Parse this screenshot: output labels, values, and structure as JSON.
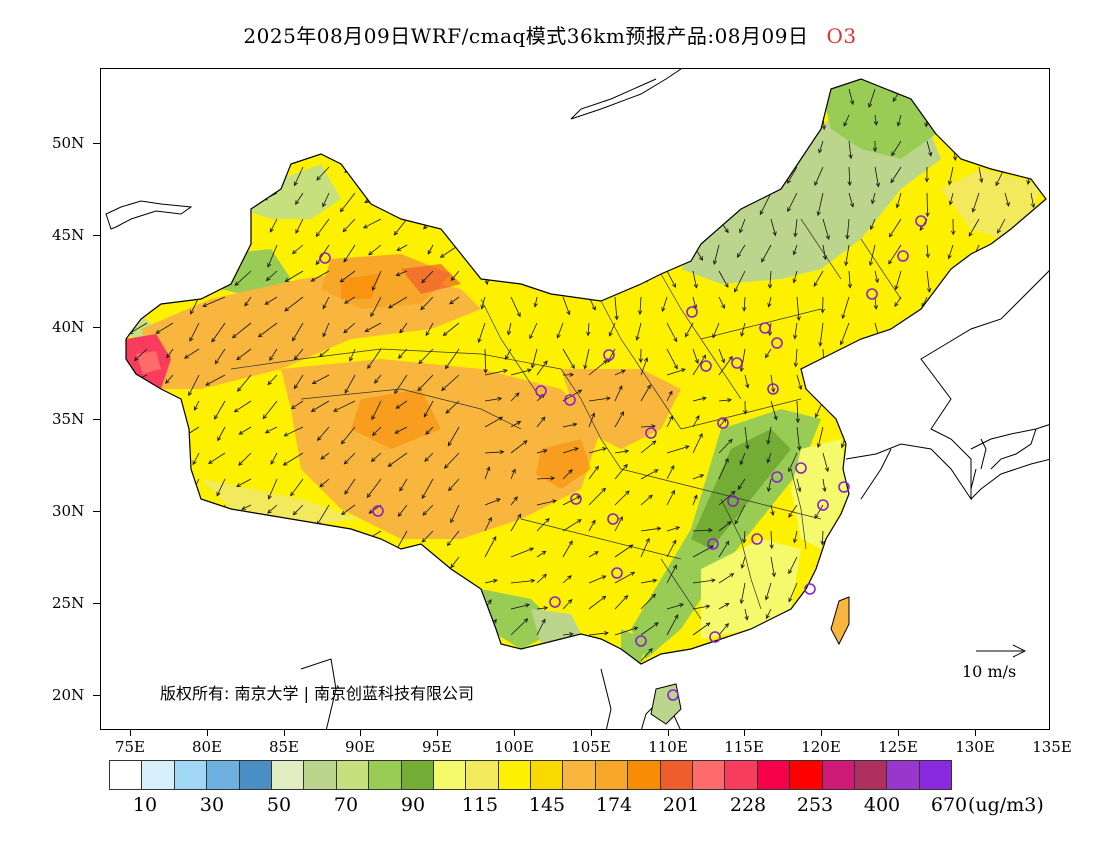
{
  "title": {
    "main": "2025年08月09日WRF/cmaq模式36km预报产品:08月09日",
    "species": "O3"
  },
  "colors": {
    "legend": [
      "#ffffff",
      "#d7effb",
      "#9fd7f4",
      "#6cb1df",
      "#4a8fc4",
      "#e2edc3",
      "#bcd58c",
      "#c5e07d",
      "#98cc55",
      "#73ad35",
      "#f4fa6b",
      "#f3e95c",
      "#fef100",
      "#f9d900",
      "#f8b63f",
      "#f8a829",
      "#f98c07",
      "#ef5d2c",
      "#ff6a6a",
      "#f83c5d",
      "#f6004a",
      "#fe0000",
      "#cd1a75",
      "#ac2f5e",
      "#9937cc",
      "#8a2ae0"
    ],
    "vector": "#111111",
    "station": "#8b20d0"
  },
  "axes": {
    "lat_labels": [
      "50N",
      "45N",
      "40N",
      "35N",
      "30N",
      "25N",
      "20N"
    ],
    "lon_labels": [
      "75E",
      "80E",
      "85E",
      "90E",
      "95E",
      "100E",
      "105E",
      "110E",
      "115E",
      "120E",
      "125E",
      "130E",
      "135E"
    ]
  },
  "legend": {
    "labels": [
      "10",
      "30",
      "50",
      "70",
      "90",
      "115",
      "145",
      "174",
      "201",
      "228",
      "253",
      "400",
      "670"
    ],
    "unit": "(ug/m3)"
  },
  "copyright": "版权所有: 南京大学 | 南京创蓝科技有限公司",
  "vector_scale": {
    "label": "10  m/s"
  }
}
